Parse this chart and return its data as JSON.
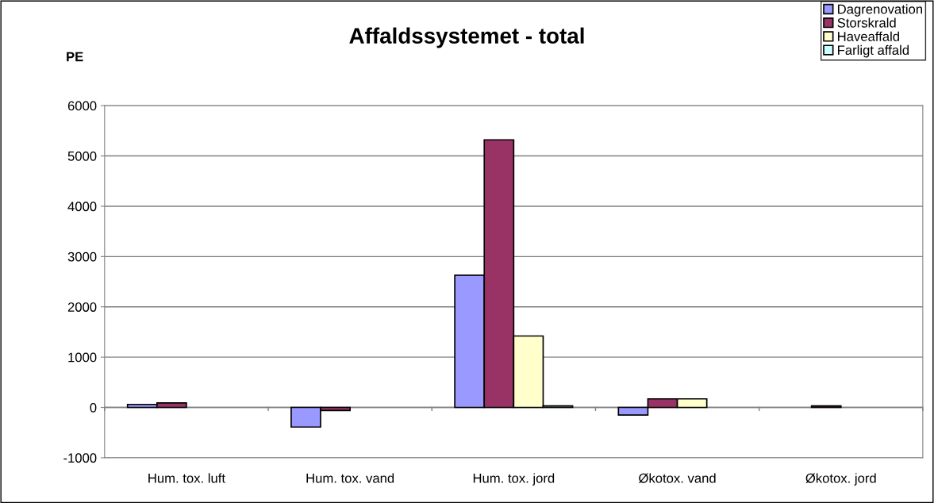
{
  "chart_data": {
    "type": "bar",
    "title": "Affaldssystemet - total",
    "ylabel": "PE",
    "categories": [
      "Hum. tox. luft",
      "Hum. tox. vand",
      "Hum. tox. jord",
      "Økotox. vand",
      "Økotox. jord"
    ],
    "series": [
      {
        "name": "Dagrenovation",
        "color": "#9999ff",
        "values": [
          60,
          -390,
          2630,
          -150,
          null
        ]
      },
      {
        "name": "Storskrald",
        "color": "#993366",
        "values": [
          90,
          -60,
          5320,
          170,
          30
        ]
      },
      {
        "name": "Haveaffald",
        "color": "#ffffcc",
        "values": [
          null,
          null,
          1420,
          170,
          null
        ]
      },
      {
        "name": "Farligt affald",
        "color": "#ccffff",
        "values": [
          null,
          null,
          30,
          null,
          null
        ]
      }
    ],
    "ylim": [
      -1000,
      6000
    ],
    "yticks": [
      -1000,
      0,
      1000,
      2000,
      3000,
      4000,
      5000,
      6000
    ],
    "grid": "y",
    "legend": "top right"
  }
}
